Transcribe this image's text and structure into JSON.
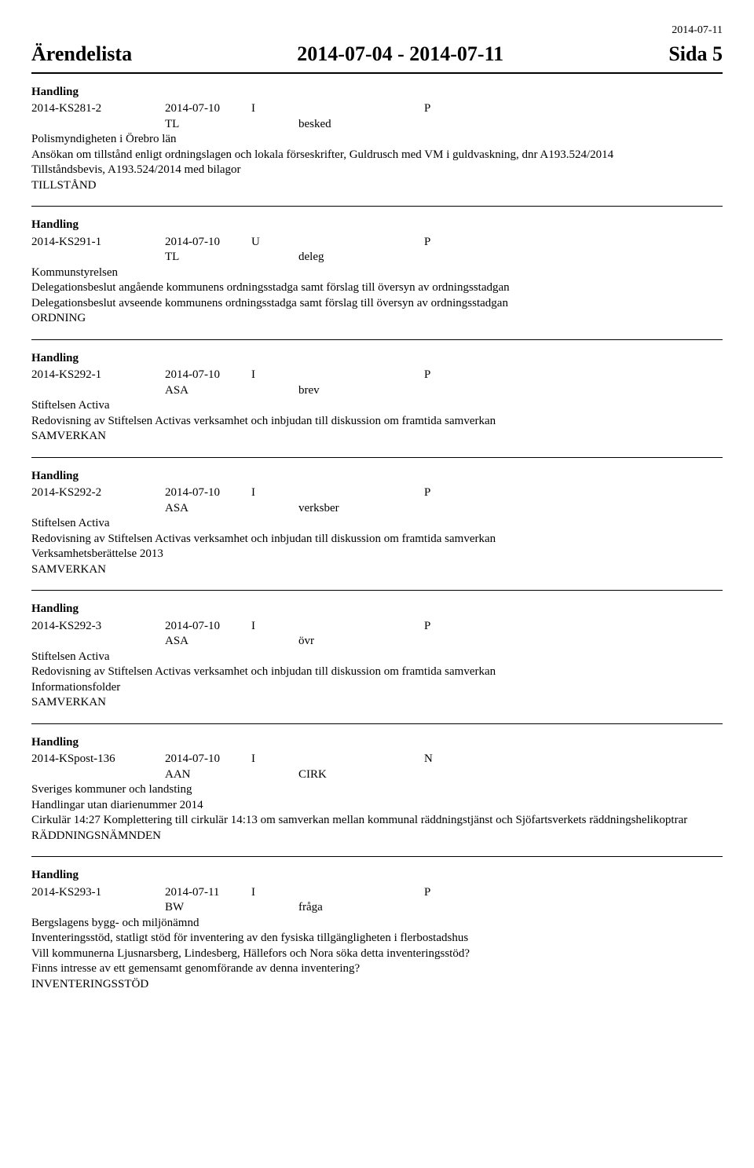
{
  "top_date": "2014-07-11",
  "header": {
    "left": "Ärendelista",
    "center": "2014-07-04 - 2014-07-11",
    "right": "Sida 5"
  },
  "record_label": "Handling",
  "records": [
    {
      "id": "2014-KS281-2",
      "date": "2014-07-10",
      "dir": "I",
      "pn": "P",
      "owner": "TL",
      "type": "besked",
      "lines": [
        "Polismyndigheten i Örebro län",
        "Ansökan om tillstånd enligt ordningslagen och lokala förseskrifter, Guldrusch med VM i guldvaskning, dnr A193.524/2014",
        "Tillståndsbevis, A193.524/2014 med bilagor",
        "TILLSTÅND"
      ]
    },
    {
      "id": "2014-KS291-1",
      "date": "2014-07-10",
      "dir": "U",
      "pn": "P",
      "owner": "TL",
      "type": "deleg",
      "lines": [
        "Kommunstyrelsen",
        "Delegationsbeslut angående kommunens ordningsstadga samt förslag till översyn av ordningsstadgan",
        "Delegationsbeslut avseende kommunens ordningsstadga samt förslag till översyn av ordningsstadgan",
        "ORDNING"
      ]
    },
    {
      "id": "2014-KS292-1",
      "date": "2014-07-10",
      "dir": "I",
      "pn": "P",
      "owner": "ASA",
      "type": "brev",
      "lines": [
        "Stiftelsen Activa",
        "Redovisning av Stiftelsen Activas verksamhet och inbjudan till diskussion om framtida samverkan",
        "SAMVERKAN"
      ]
    },
    {
      "id": "2014-KS292-2",
      "date": "2014-07-10",
      "dir": "I",
      "pn": "P",
      "owner": "ASA",
      "type": "verksber",
      "lines": [
        "Stiftelsen Activa",
        "Redovisning av Stiftelsen Activas verksamhet och inbjudan till diskussion om framtida samverkan",
        "Verksamhetsberättelse 2013",
        "SAMVERKAN"
      ]
    },
    {
      "id": "2014-KS292-3",
      "date": "2014-07-10",
      "dir": "I",
      "pn": "P",
      "owner": "ASA",
      "type": "övr",
      "lines": [
        "Stiftelsen Activa",
        "Redovisning av Stiftelsen Activas verksamhet och inbjudan till diskussion om framtida samverkan",
        "Informationsfolder",
        "SAMVERKAN"
      ]
    },
    {
      "id": "2014-KSpost-136",
      "date": "2014-07-10",
      "dir": "I",
      "pn": "N",
      "owner": "AAN",
      "type": "CIRK",
      "lines": [
        "Sveriges kommuner och landsting",
        "Handlingar utan diarienummer 2014",
        "Cirkulär 14:27 Komplettering till cirkulär 14:13 om samverkan mellan kommunal räddningstjänst och Sjöfartsverkets räddningshelikoptrar",
        "RÄDDNINGSNÄMNDEN"
      ]
    },
    {
      "id": "2014-KS293-1",
      "date": "2014-07-11",
      "dir": "I",
      "pn": "P",
      "owner": "BW",
      "type": "fråga",
      "lines": [
        "Bergslagens bygg- och miljönämnd",
        "Inventeringsstöd, statligt stöd för inventering av den fysiska tillgängligheten i flerbostadshus",
        "Vill kommunerna Ljusnarsberg, Lindesberg, Hällefors och Nora söka detta inventeringsstöd?",
        "Finns intresse av ett gemensamt genomförande av denna inventering?",
        "INVENTERINGSSTÖD"
      ]
    }
  ]
}
